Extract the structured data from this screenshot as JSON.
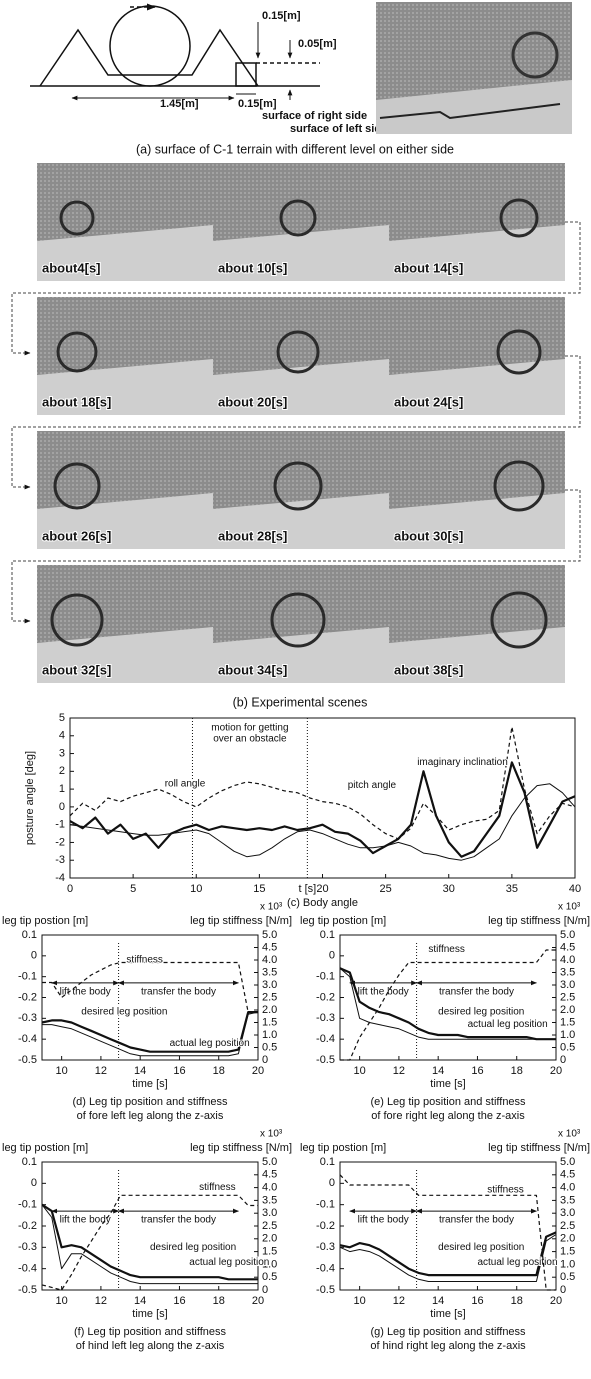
{
  "figure_a": {
    "labels": [
      "0.15[m]",
      "0.05[m]",
      "1.45[m]",
      "0.15[m]",
      "surface of right side",
      "surface of left side"
    ],
    "caption": "(a) surface of C-1 terrain with different level on either side"
  },
  "scenes": {
    "frames": [
      "about4[s]",
      "about 10[s]",
      "about 14[s]",
      "about 18[s]",
      "about 20[s]",
      "about 24[s]",
      "about 26[s]",
      "about 28[s]",
      "about 30[s]",
      "about 32[s]",
      "about 34[s]",
      "about 38[s]"
    ],
    "caption": "(b) Experimental scenes"
  },
  "chart_data": [
    {
      "type": "line",
      "caption": [
        "(c) Body angle"
      ],
      "y_label": "posture angle [deg]",
      "x_label": "t [s]",
      "annotation": [
        "motion for getting",
        "over an obstacle"
      ],
      "vlines": [
        9.7,
        18.8
      ],
      "xlim": [
        0,
        40
      ],
      "xticks": [
        0,
        5,
        10,
        15,
        20,
        25,
        30,
        35,
        40
      ],
      "ylim": [
        -4,
        5
      ],
      "yticks": [
        -4,
        -3,
        -2,
        -1,
        0,
        1,
        2,
        3,
        4,
        5
      ],
      "x": [
        0,
        1,
        2,
        3,
        4,
        5,
        6,
        7,
        8,
        9,
        10,
        11,
        12,
        13,
        14,
        15,
        16,
        17,
        18,
        19,
        20,
        21,
        22,
        23,
        24,
        25,
        26,
        27,
        28,
        29,
        30,
        31,
        32,
        33,
        34,
        35,
        36,
        37,
        38,
        39,
        40
      ],
      "series": [
        {
          "name": "roll angle",
          "style": "dashed",
          "color": "#111111",
          "values": [
            -0.5,
            0.2,
            -0.2,
            0.5,
            0.3,
            0.6,
            0.8,
            1.0,
            0.7,
            0.3,
            0.0,
            0.5,
            0.9,
            1.2,
            1.4,
            1.3,
            1.1,
            0.9,
            0.8,
            0.5,
            0.3,
            0.2,
            0.0,
            -0.4,
            -1.0,
            -1.5,
            -1.8,
            -1.2,
            0.2,
            -0.5,
            -1.3,
            -1.0,
            -0.8,
            -0.7,
            -0.2,
            4.5,
            1.0,
            -1.5,
            -0.5,
            0.2,
            0.0
          ]
        },
        {
          "name": "pitch angle",
          "style": "thick",
          "color": "#111111",
          "values": [
            -0.8,
            -1.2,
            -0.6,
            -1.5,
            -1.0,
            -1.8,
            -1.5,
            -2.3,
            -1.5,
            -1.2,
            -1.0,
            -1.3,
            -1.1,
            -1.2,
            -1.3,
            -1.2,
            -1.3,
            -1.1,
            -1.3,
            -1.2,
            -1.0,
            -1.4,
            -1.5,
            -1.9,
            -2.6,
            -2.2,
            -1.8,
            -1.0,
            2.0,
            -0.5,
            -2.0,
            -2.8,
            -2.5,
            -1.5,
            -0.5,
            2.5,
            0.8,
            -2.3,
            -1.0,
            0.3,
            0.6
          ]
        },
        {
          "name": "imaginary inclination",
          "style": "thin",
          "color": "#111111",
          "values": [
            -1.0,
            -1.1,
            -1.2,
            -1.3,
            -1.4,
            -1.5,
            -1.6,
            -1.6,
            -1.5,
            -1.4,
            -1.3,
            -1.5,
            -2.0,
            -2.5,
            -2.8,
            -2.7,
            -2.3,
            -1.8,
            -1.4,
            -1.3,
            -1.5,
            -1.8,
            -2.1,
            -2.3,
            -2.3,
            -2.2,
            -2.0,
            -2.2,
            -2.6,
            -2.7,
            -2.9,
            -3.0,
            -2.8,
            -2.3,
            -1.8,
            -0.5,
            0.5,
            1.2,
            1.3,
            0.8,
            0.0
          ]
        }
      ]
    },
    {
      "type": "line",
      "caption": [
        "(d) Leg tip position and stiffness",
        "of fore left leg along the z-axis"
      ],
      "y_label": "leg tip postion [m]",
      "y2_label": "leg tip stiffness [N/m]",
      "y2_multiplier": "x 10³",
      "x_label": "time [s]",
      "phases": [
        {
          "name": "lift the body",
          "range": [
            9.5,
            12.9
          ]
        },
        {
          "name": "transfer the body",
          "range": [
            12.9,
            19
          ]
        }
      ],
      "xlim": [
        9,
        20
      ],
      "xticks": [
        10,
        12,
        14,
        16,
        18,
        20
      ],
      "ylim": [
        -0.5,
        0.1
      ],
      "yticks": [
        0.1,
        0,
        -0.1,
        -0.2,
        -0.3,
        -0.4,
        -0.5
      ],
      "y2lim": [
        0,
        5
      ],
      "y2ticks": [
        0,
        0.5,
        {
          "value": 1,
          "label": "1.0"
        },
        1.5,
        {
          "value": 2,
          "label": "2.0"
        },
        2.5,
        {
          "value": 3,
          "label": "3.0"
        },
        3.5,
        {
          "value": 4,
          "label": "4.0"
        },
        4.5,
        {
          "value": 5,
          "label": "5.0"
        }
      ],
      "x": [
        9,
        9.5,
        10,
        10.5,
        11,
        11.5,
        12,
        12.5,
        13,
        13.5,
        14,
        14.5,
        15,
        15.5,
        16,
        16.5,
        17,
        17.5,
        18,
        18.5,
        19,
        19.5,
        20
      ],
      "series": [
        {
          "name": "desired leg position",
          "style": "thick",
          "color": "#111111",
          "values": [
            -0.32,
            -0.31,
            -0.31,
            -0.32,
            -0.34,
            -0.36,
            -0.38,
            -0.4,
            -0.42,
            -0.44,
            -0.45,
            -0.46,
            -0.46,
            -0.46,
            -0.46,
            -0.46,
            -0.46,
            -0.46,
            -0.46,
            -0.46,
            -0.45,
            -0.27,
            -0.27
          ]
        },
        {
          "name": "actual leg position",
          "style": "thin",
          "color": "#111111",
          "values": [
            -0.33,
            -0.33,
            -0.34,
            -0.35,
            -0.37,
            -0.39,
            -0.41,
            -0.43,
            -0.45,
            -0.47,
            -0.48,
            -0.48,
            -0.48,
            -0.48,
            -0.48,
            -0.48,
            -0.48,
            -0.48,
            -0.48,
            -0.48,
            -0.47,
            -0.28,
            -0.27
          ]
        },
        {
          "name": "stiffness",
          "style": "dashed",
          "color": "#111111",
          "axis": "y2",
          "values": [
            3.1,
            3.1,
            2.5,
            2.8,
            3.1,
            3.4,
            3.6,
            3.8,
            3.9,
            3.9,
            3.9,
            3.9,
            3.9,
            3.9,
            3.9,
            3.9,
            3.9,
            3.9,
            3.9,
            3.9,
            3.9,
            1.9,
            1.9
          ]
        }
      ]
    },
    {
      "type": "line",
      "caption": [
        "(e) Leg tip position and stiffness",
        "of fore right leg along the z-axis"
      ],
      "y_label": "leg tip postion [m]",
      "y2_label": "leg tip stiffness [N/m]",
      "y2_multiplier": "x 10³",
      "x_label": "time [s]",
      "phases": [
        {
          "name": "lift the body",
          "range": [
            9.5,
            12.9
          ]
        },
        {
          "name": "transfer the body",
          "range": [
            12.9,
            19
          ]
        }
      ],
      "xlim": [
        9,
        20
      ],
      "xticks": [
        10,
        12,
        14,
        16,
        18,
        20
      ],
      "ylim": [
        -0.5,
        0.1
      ],
      "yticks": [
        0.1,
        0,
        -0.1,
        -0.2,
        -0.3,
        -0.4,
        -0.5
      ],
      "y2lim": [
        0,
        5
      ],
      "y2ticks": [
        0,
        0.5,
        {
          "value": 1,
          "label": "1.0"
        },
        1.5,
        {
          "value": 2,
          "label": "2.0"
        },
        2.5,
        {
          "value": 3,
          "label": "3.0"
        },
        3.5,
        {
          "value": 4,
          "label": "4.0"
        },
        4.5,
        {
          "value": 5,
          "label": "5.0"
        }
      ],
      "x": [
        9,
        9.5,
        10,
        10.5,
        11,
        11.5,
        12,
        12.5,
        13,
        13.5,
        14,
        14.5,
        15,
        15.5,
        16,
        16.5,
        17,
        17.5,
        18,
        18.5,
        19,
        19.5,
        20
      ],
      "series": [
        {
          "name": "desired leg position",
          "style": "thick",
          "color": "#111111",
          "values": [
            -0.06,
            -0.08,
            -0.22,
            -0.25,
            -0.27,
            -0.28,
            -0.3,
            -0.32,
            -0.35,
            -0.37,
            -0.38,
            -0.38,
            -0.38,
            -0.39,
            -0.39,
            -0.39,
            -0.39,
            -0.39,
            -0.39,
            -0.39,
            -0.4,
            -0.4,
            -0.4
          ]
        },
        {
          "name": "actual leg position",
          "style": "thin",
          "color": "#111111",
          "values": [
            -0.06,
            -0.1,
            -0.3,
            -0.32,
            -0.33,
            -0.34,
            -0.35,
            -0.37,
            -0.39,
            -0.4,
            -0.4,
            -0.4,
            -0.4,
            -0.4,
            -0.4,
            -0.4,
            -0.4,
            -0.4,
            -0.4,
            -0.4,
            -0.4,
            -0.4,
            -0.4
          ]
        },
        {
          "name": "stiffness",
          "style": "dashed",
          "color": "#111111",
          "axis": "y2",
          "values": [
            0,
            0,
            0.9,
            1.5,
            2.1,
            2.8,
            3.4,
            3.9,
            3.9,
            3.9,
            3.9,
            3.9,
            3.9,
            3.9,
            3.9,
            3.9,
            3.9,
            3.9,
            3.9,
            3.9,
            3.9,
            4.4,
            4.4
          ]
        }
      ]
    },
    {
      "type": "line",
      "caption": [
        "(f) Leg tip position and stiffness",
        "of hind left leg along the z-axis"
      ],
      "y_label": "leg tip postion [m]",
      "y2_label": "leg tip stiffness [N/m]",
      "y2_multiplier": "x 10³",
      "x_label": "time [s]",
      "phases": [
        {
          "name": "lift the body",
          "range": [
            9.5,
            12.9
          ]
        },
        {
          "name": "transfer the body",
          "range": [
            12.9,
            19
          ]
        }
      ],
      "xlim": [
        9,
        20
      ],
      "xticks": [
        10,
        12,
        14,
        16,
        18,
        20
      ],
      "ylim": [
        -0.5,
        0.1
      ],
      "yticks": [
        0.1,
        0,
        -0.1,
        -0.2,
        -0.3,
        -0.4,
        -0.5
      ],
      "y2lim": [
        0,
        5
      ],
      "y2ticks": [
        0,
        0.5,
        {
          "value": 1,
          "label": "1.0"
        },
        1.5,
        {
          "value": 2,
          "label": "2.0"
        },
        2.5,
        {
          "value": 3,
          "label": "3.0"
        },
        3.5,
        {
          "value": 4,
          "label": "4.0"
        },
        4.5,
        {
          "value": 5,
          "label": "5.0"
        }
      ],
      "x": [
        9,
        9.5,
        10,
        10.5,
        11,
        11.5,
        12,
        12.5,
        13,
        13.5,
        14,
        14.5,
        15,
        15.5,
        16,
        16.5,
        17,
        17.5,
        18,
        18.5,
        19,
        19.5,
        20
      ],
      "series": [
        {
          "name": "desired leg position",
          "style": "thick",
          "color": "#111111",
          "values": [
            -0.1,
            -0.13,
            -0.3,
            -0.29,
            -0.3,
            -0.33,
            -0.36,
            -0.39,
            -0.41,
            -0.43,
            -0.44,
            -0.44,
            -0.44,
            -0.44,
            -0.44,
            -0.44,
            -0.44,
            -0.44,
            -0.44,
            -0.45,
            -0.45,
            -0.45,
            -0.45
          ]
        },
        {
          "name": "actual leg position",
          "style": "thin",
          "color": "#111111",
          "values": [
            -0.1,
            -0.16,
            -0.4,
            -0.33,
            -0.33,
            -0.36,
            -0.39,
            -0.42,
            -0.44,
            -0.46,
            -0.47,
            -0.47,
            -0.47,
            -0.47,
            -0.47,
            -0.47,
            -0.47,
            -0.47,
            -0.47,
            -0.47,
            -0.47,
            -0.47,
            -0.47
          ]
        },
        {
          "name": "stiffness",
          "style": "dashed",
          "color": "#111111",
          "axis": "y2",
          "values": [
            0.2,
            0.1,
            0,
            0.6,
            1.3,
            1.9,
            2.5,
            3.0,
            3.7,
            3.7,
            3.7,
            3.7,
            3.7,
            3.7,
            3.7,
            3.7,
            3.7,
            3.7,
            3.7,
            3.7,
            3.7,
            3.3,
            3.3
          ]
        }
      ]
    },
    {
      "type": "line",
      "caption": [
        "(g) Leg tip position and stiffness",
        "of hind right leg along the z-axis"
      ],
      "y_label": "leg tip postion [m]",
      "y2_label": "leg tip stiffness [N/m]",
      "y2_multiplier": "x 10³",
      "x_label": "time [s]",
      "phases": [
        {
          "name": "lift the body",
          "range": [
            9.5,
            12.9
          ]
        },
        {
          "name": "transfer the body",
          "range": [
            12.9,
            19
          ]
        }
      ],
      "xlim": [
        9,
        20
      ],
      "xticks": [
        10,
        12,
        14,
        16,
        18,
        20
      ],
      "ylim": [
        -0.5,
        0.1
      ],
      "yticks": [
        0.1,
        0,
        -0.1,
        -0.2,
        -0.3,
        -0.4,
        -0.5
      ],
      "y2lim": [
        0,
        5
      ],
      "y2ticks": [
        0,
        0.5,
        {
          "value": 1,
          "label": "1.0"
        },
        1.5,
        {
          "value": 2,
          "label": "2.0"
        },
        2.5,
        {
          "value": 3,
          "label": "3.0"
        },
        3.5,
        {
          "value": 4,
          "label": "4.0"
        },
        4.5,
        {
          "value": 5,
          "label": "5.0"
        }
      ],
      "x": [
        9,
        9.5,
        10,
        10.5,
        11,
        11.5,
        12,
        12.5,
        13,
        13.5,
        14,
        14.5,
        15,
        15.5,
        16,
        16.5,
        17,
        17.5,
        18,
        18.5,
        19,
        19.5,
        20
      ],
      "series": [
        {
          "name": "desired leg position",
          "style": "thick",
          "color": "#111111",
          "values": [
            -0.29,
            -0.3,
            -0.28,
            -0.29,
            -0.31,
            -0.34,
            -0.37,
            -0.4,
            -0.42,
            -0.43,
            -0.43,
            -0.43,
            -0.43,
            -0.43,
            -0.43,
            -0.43,
            -0.43,
            -0.43,
            -0.43,
            -0.43,
            -0.43,
            -0.25,
            -0.23
          ]
        },
        {
          "name": "actual leg position",
          "style": "thin",
          "color": "#111111",
          "values": [
            -0.3,
            -0.32,
            -0.31,
            -0.32,
            -0.34,
            -0.37,
            -0.4,
            -0.43,
            -0.45,
            -0.46,
            -0.46,
            -0.46,
            -0.46,
            -0.46,
            -0.46,
            -0.46,
            -0.46,
            -0.46,
            -0.46,
            -0.46,
            -0.46,
            -0.27,
            -0.24
          ]
        },
        {
          "name": "stiffness",
          "style": "dashed",
          "color": "#111111",
          "axis": "y2",
          "values": [
            4.5,
            4.1,
            4.1,
            4.1,
            4.1,
            4.1,
            4.1,
            4.1,
            3.7,
            3.7,
            3.7,
            3.7,
            3.7,
            3.7,
            3.7,
            3.7,
            3.7,
            3.7,
            3.7,
            3.7,
            3.7,
            0,
            0
          ]
        }
      ]
    }
  ]
}
